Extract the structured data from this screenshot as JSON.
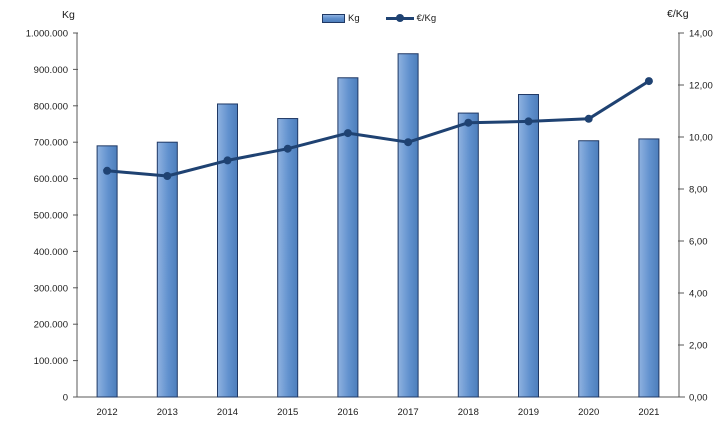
{
  "chart_data": {
    "type": "bar",
    "subtype": "combo-bar-line-dual-axis",
    "title": "",
    "categories": [
      "2012",
      "2013",
      "2014",
      "2015",
      "2016",
      "2017",
      "2018",
      "2019",
      "2020",
      "2021"
    ],
    "series": [
      {
        "name": "Kg",
        "type": "bar",
        "axis": "left",
        "values": [
          690000,
          700000,
          805000,
          765000,
          877000,
          943000,
          780000,
          831000,
          704000,
          709000
        ]
      },
      {
        "name": "€/Kg",
        "type": "line",
        "axis": "right",
        "values": [
          8.7,
          8.5,
          9.1,
          9.55,
          10.15,
          9.8,
          10.55,
          10.6,
          10.7,
          12.15
        ]
      }
    ],
    "left_axis": {
      "title": "Kg",
      "min": 0,
      "max": 1000000,
      "tick_interval": 100000,
      "tick_labels": [
        "1.000.000",
        "900.000",
        "800.000",
        "700.000",
        "600.000",
        "500.000",
        "400.000",
        "300.000",
        "200.000",
        "100.000",
        "0"
      ]
    },
    "right_axis": {
      "title": "€/Kg",
      "min": 0,
      "max": 14,
      "tick_interval": 2,
      "tick_labels": [
        "14,00",
        "12,00",
        "10,00",
        "8,00",
        "6,00",
        "4,00",
        "2,00",
        "0,00"
      ]
    },
    "legend": {
      "position": "top-center",
      "entries": [
        "Kg",
        "€/Kg"
      ]
    },
    "grid": false,
    "colors": {
      "bar_fill": "#6191ce",
      "bar_fill_light": "#8fb2e0",
      "bar_fill_dark": "#4d7ebb",
      "bar_border": "#1f3864",
      "line": "#1f4272",
      "axis": "#595959",
      "text": "#1a1a1a"
    }
  }
}
